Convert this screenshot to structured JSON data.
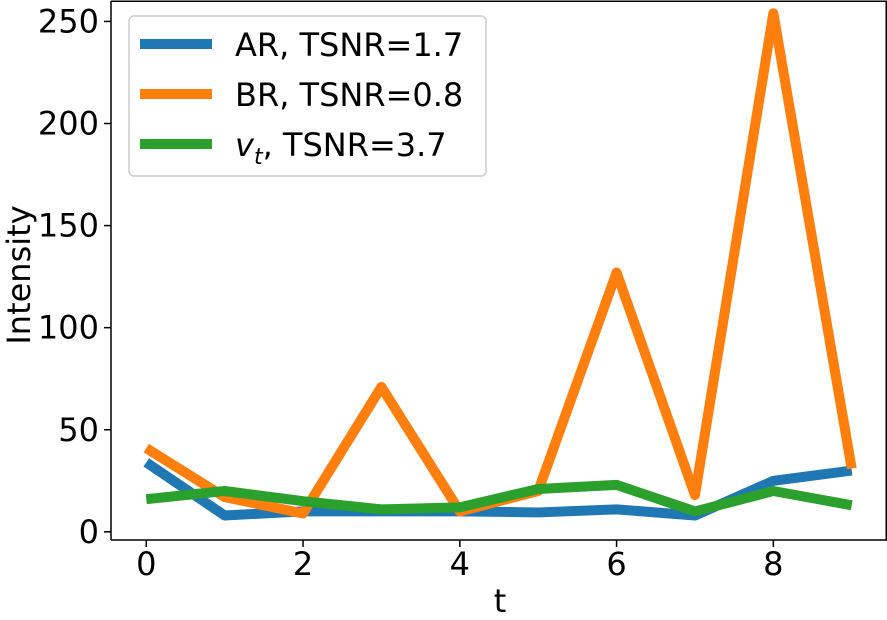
{
  "chart_data": {
    "type": "line",
    "xlabel": "t",
    "ylabel": "Intensity",
    "xlim": [
      -0.45,
      9.45
    ],
    "ylim": [
      -4,
      260
    ],
    "xticks": [
      0,
      2,
      4,
      6,
      8
    ],
    "yticks": [
      0,
      50,
      100,
      150,
      200,
      250
    ],
    "grid": false,
    "legend_position": "top-left",
    "x": [
      0,
      1,
      2,
      3,
      4,
      5,
      6,
      7,
      8,
      9
    ],
    "series": [
      {
        "name": "AR, TSNR=1.7",
        "color": "#1f77b4",
        "values": [
          34,
          8,
          10,
          10,
          10,
          9.5,
          11,
          8,
          25,
          30
        ]
      },
      {
        "name": "BR, TSNR=0.8",
        "color": "#ff7f0e",
        "values": [
          41,
          17,
          9,
          71,
          10,
          20,
          127,
          18,
          254,
          31
        ]
      },
      {
        "name_main": "v",
        "name_sub": "t",
        "name_rest": ", TSNR=3.7",
        "color": "#2ca02c",
        "values": [
          16,
          20,
          15,
          11,
          12,
          21,
          23,
          10,
          20,
          13
        ]
      }
    ]
  }
}
